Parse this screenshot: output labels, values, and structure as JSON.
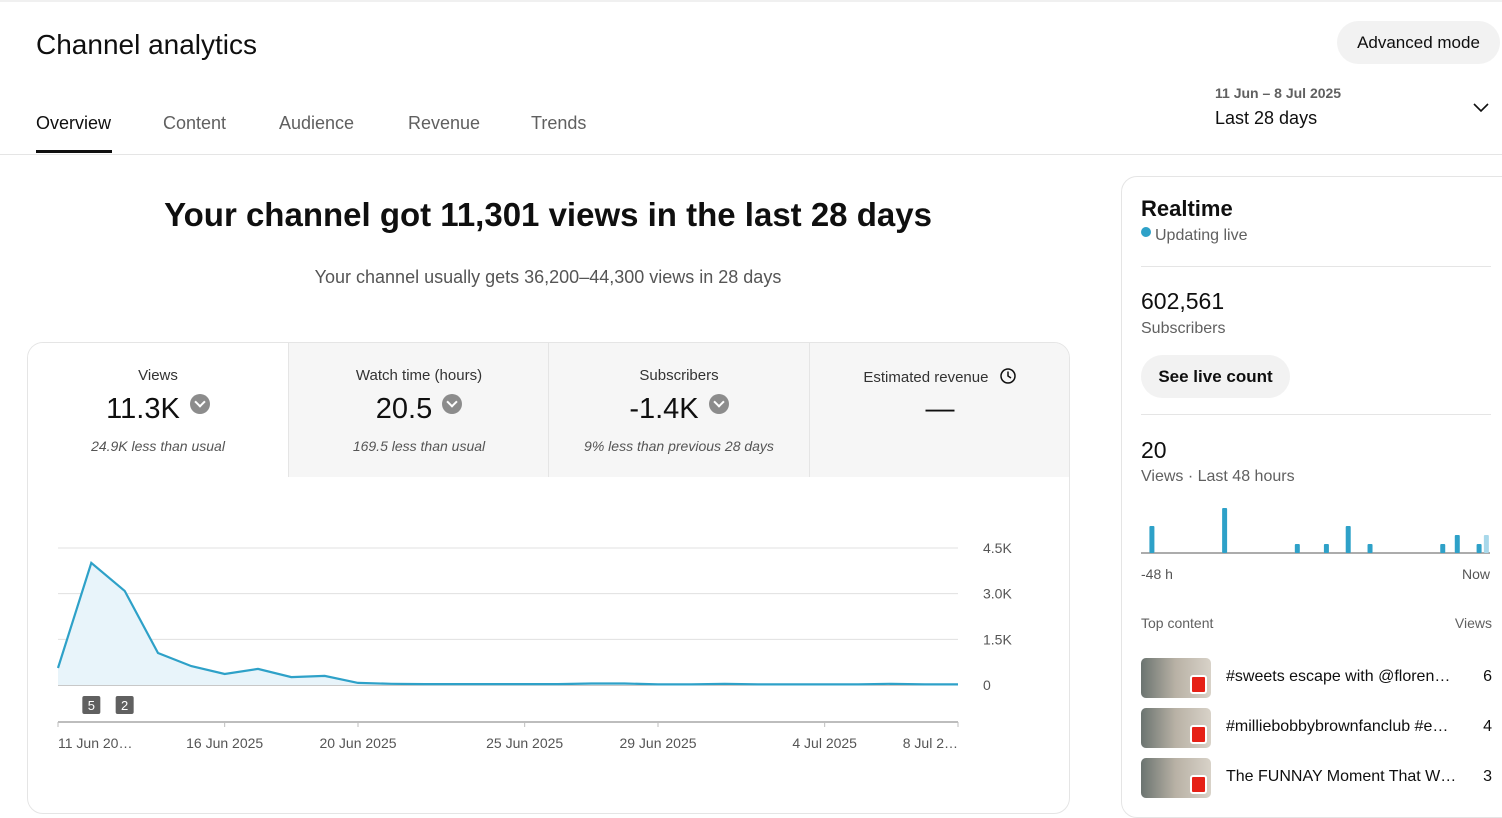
{
  "header": {
    "title": "Channel analytics",
    "button": "Advanced mode",
    "tabs": [
      "Overview",
      "Content",
      "Audience",
      "Revenue",
      "Trends"
    ],
    "date_range": "11 Jun – 8 Jul 2025",
    "period": "Last 28 days"
  },
  "summary": {
    "headline": "Your channel got 11,301 views in the last 28 days",
    "subline": "Your channel usually gets 36,200–44,300 views in 28 days"
  },
  "metrics": [
    {
      "label": "Views",
      "value": "11.3K",
      "note": "24.9K less than usual"
    },
    {
      "label": "Watch time (hours)",
      "value": "20.5",
      "note": "169.5 less than usual"
    },
    {
      "label": "Subscribers",
      "value": "-1.4K",
      "note": "9% less than previous 28 days"
    },
    {
      "label": "Estimated revenue",
      "value": "—"
    }
  ],
  "chart_data": [
    {
      "type": "line",
      "categories": [
        "11 Jun 20…",
        null,
        null,
        null,
        null,
        "16 Jun 2025",
        null,
        null,
        null,
        "20 Jun 2025",
        null,
        null,
        null,
        null,
        "25 Jun 2025",
        null,
        null,
        null,
        "29 Jun 2025",
        null,
        null,
        null,
        null,
        "4 Jul 2025",
        null,
        null,
        null,
        "8 Jul 2…"
      ],
      "values": [
        560,
        4010,
        3090,
        1050,
        620,
        360,
        530,
        260,
        300,
        70,
        40,
        30,
        30,
        30,
        30,
        30,
        50,
        50,
        20,
        20,
        40,
        20,
        20,
        20,
        20,
        40,
        20,
        20
      ],
      "uploads": [
        null,
        5,
        2,
        null,
        null,
        null,
        null,
        null,
        null,
        null,
        null,
        null,
        null,
        null,
        null,
        null,
        null,
        null,
        null,
        null,
        null,
        null,
        null,
        null,
        null,
        null,
        null,
        null
      ],
      "color": "#2ea1c8",
      "area_color": "#e8f4fa",
      "ylim": [
        0,
        4500
      ],
      "yticks": [
        0,
        {
          "value": 1500,
          "label": "1.5K"
        },
        {
          "value": 3000,
          "label": "3.0K"
        },
        {
          "value": 4500,
          "label": "4.5K"
        }
      ],
      "grid": true
    },
    {
      "type": "bar",
      "values": [
        0,
        3,
        0,
        0,
        0,
        0,
        0,
        0,
        0,
        0,
        0,
        5,
        0,
        0,
        0,
        0,
        0,
        0,
        0,
        0,
        0,
        1,
        0,
        0,
        0,
        1,
        0,
        0,
        3,
        0,
        0,
        1,
        0,
        0,
        0,
        0,
        0,
        0,
        0,
        0,
        0,
        1,
        0,
        2,
        0,
        0,
        1,
        2
      ],
      "color": "#2ea1c8",
      "current_color": "#a8d8ea",
      "x_start_label": "-48 h",
      "x_end_label": "Now"
    }
  ],
  "realtime": {
    "title": "Realtime",
    "status": "Updating live",
    "subscribers": "602,561",
    "subscribers_label": "Subscribers",
    "button": "See live count",
    "views": 20,
    "views_label": "Views · Last 48 hours"
  },
  "top_content": {
    "title": "Top content",
    "views_header": "Views",
    "rows": [
      {
        "title": "#sweets escape with @floren…",
        "views": 6
      },
      {
        "title": "#milliebobbybrownfanclub #e…",
        "views": 4
      },
      {
        "title": "The FUNNAY Moment That W…",
        "views": 3
      }
    ]
  }
}
